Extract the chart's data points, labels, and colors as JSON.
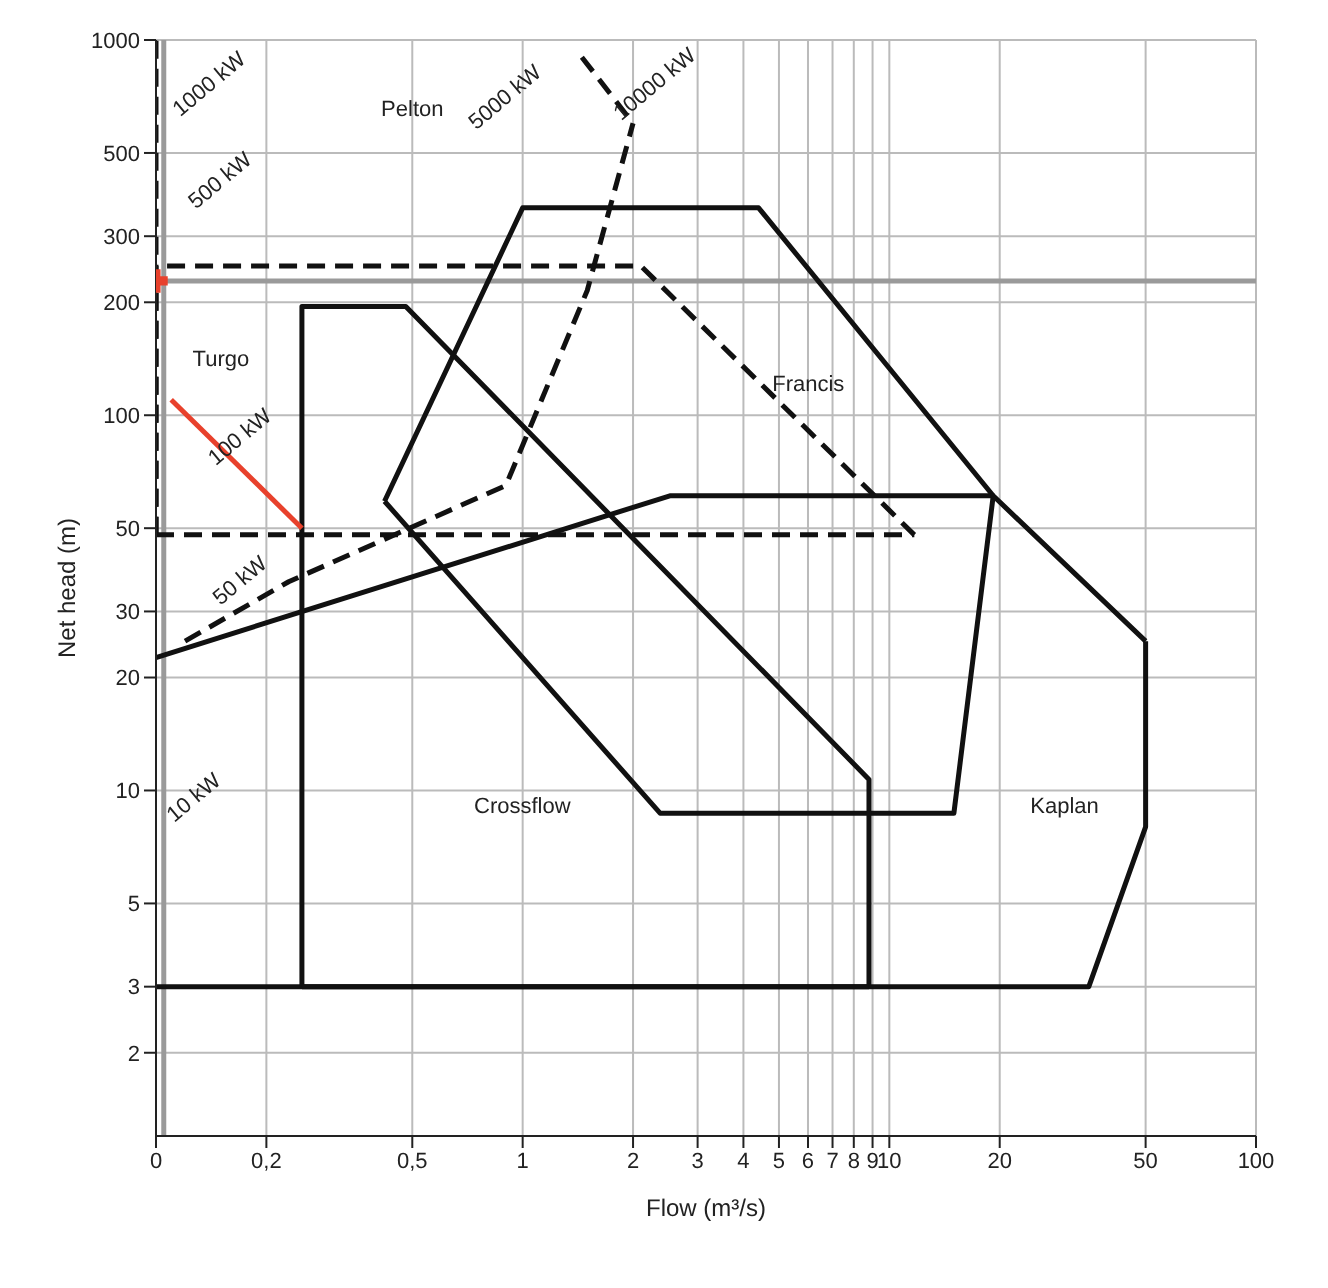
{
  "chart_data": {
    "type": "line",
    "xlabel": "Flow (m³/s)",
    "ylabel": "Net head (m)",
    "log": "xy",
    "grid": true,
    "marker": "none",
    "legend": false,
    "xlim": [
      0.1,
      100
    ],
    "xticks": [
      {
        "value": 0.1,
        "label": "0"
      },
      {
        "value": 0.2,
        "label": "0,2"
      },
      {
        "value": 0.5,
        "label": "0,5"
      },
      1,
      2,
      3,
      4,
      5,
      6,
      7,
      8,
      9,
      10,
      20,
      50,
      100
    ],
    "ylim": [
      1.2,
      1000
    ],
    "yticks": [
      2,
      3,
      5,
      10,
      20,
      30,
      50,
      100,
      200,
      300,
      500,
      1000
    ],
    "series": [
      {
        "color": "#111111",
        "line_style": "dashed",
        "x": [
          0.1,
          0.1
        ],
        "values": [
          48,
          1000
        ]
      },
      {
        "color": "#111111",
        "line_style": "dashed",
        "x": [
          0.12,
          0.23,
          0.9,
          1.5,
          2
        ],
        "values": [
          25,
          36,
          65,
          215,
          600
        ]
      },
      {
        "color": "#111111",
        "line_style": "dashed",
        "x": [
          1.45,
          2
        ],
        "values": [
          900,
          600
        ]
      },
      {
        "color": "#111111",
        "line_style": "dashed",
        "x": [
          0.1,
          0.1,
          2.1,
          11.7
        ],
        "values": [
          48,
          250,
          250,
          48
        ]
      },
      {
        "color": "#111111",
        "line_style": "dashed",
        "x": [
          0.1,
          11.7
        ],
        "values": [
          48,
          48
        ]
      },
      {
        "color": "#111111",
        "line_style": "solid",
        "x": [
          0.42,
          1,
          4.4,
          19.2
        ],
        "values": [
          59,
          357,
          357,
          61
        ]
      },
      {
        "color": "#111111",
        "line_style": "solid",
        "x": [
          0.42,
          2.37,
          15,
          19.2
        ],
        "values": [
          59,
          8.7,
          8.7,
          61
        ]
      },
      {
        "color": "#111111",
        "line_style": "solid",
        "x": [
          0.1,
          2.52,
          19.2,
          50
        ],
        "values": [
          22.6,
          61,
          61,
          25
        ]
      },
      {
        "color": "#111111",
        "line_style": "solid",
        "x": [
          0.1,
          35,
          50,
          50
        ],
        "values": [
          3,
          3,
          8,
          25
        ]
      },
      {
        "color": "#111111",
        "line_style": "solid",
        "x": [
          0.25,
          0.25,
          0.48,
          8.8,
          8.8
        ],
        "values": [
          3,
          195,
          195,
          10.7,
          3
        ]
      },
      {
        "color": "#111111",
        "line_style": "solid",
        "x": [
          0.25,
          8.8
        ],
        "values": [
          3,
          3
        ]
      },
      {
        "color": "#e8412c",
        "line_style": "solid",
        "x": [
          0.11,
          0.25
        ],
        "values": [
          110,
          50
        ]
      },
      {
        "type": "scatter",
        "color": "#e8412c",
        "marker": "cross",
        "x": [
          0.1
        ],
        "values": [
          228
        ]
      }
    ],
    "ref_lines": [
      {
        "axis": "y",
        "value": 228,
        "color": "#9a9a9a"
      },
      {
        "axis": "x",
        "value": 0.105,
        "color": "#9a9a9a"
      }
    ],
    "annotations": [
      "Pelton",
      "Turgo",
      "Francis",
      "Crossflow",
      "Kaplan",
      "1000 kW",
      "500 kW",
      "5000 kW",
      "10000 kW",
      "100 kW",
      "50 kW",
      "10 kW"
    ]
  }
}
